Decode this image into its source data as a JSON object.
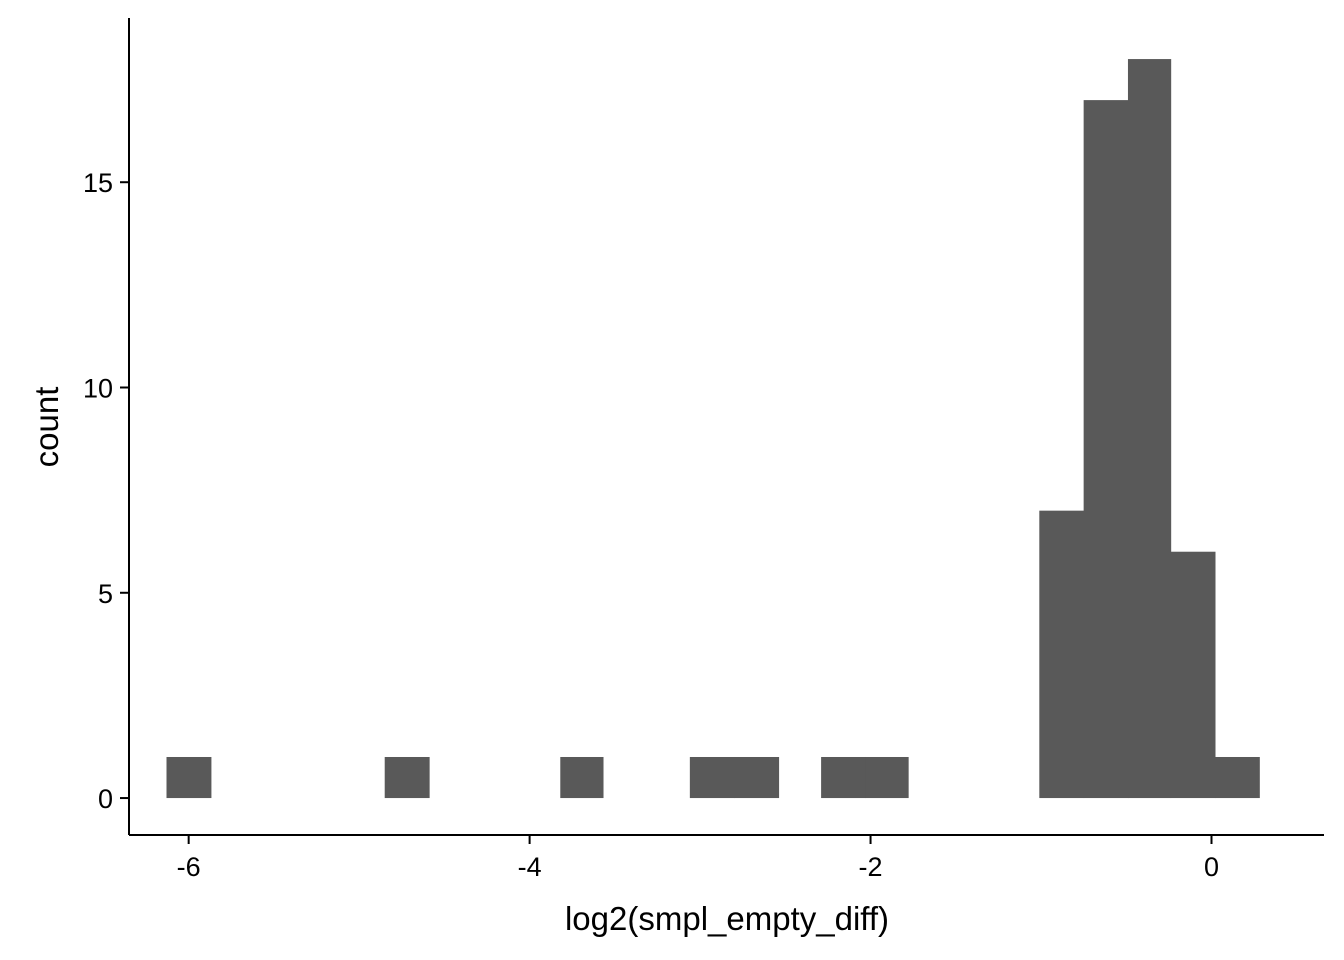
{
  "chart_data": {
    "type": "bar",
    "subtype": "histogram",
    "xlabel": "log2(smpl_empty_diff)",
    "ylabel": "count",
    "xlim": [
      -6.35,
      0.66
    ],
    "ylim": [
      -0.9,
      19.0
    ],
    "xticks": [
      -6,
      -4,
      -2,
      0
    ],
    "xtick_labels": [
      "-6",
      "-4",
      "-2",
      "0"
    ],
    "yticks": [
      0,
      5,
      10,
      15
    ],
    "ytick_labels": [
      "0",
      "5",
      "10",
      "15"
    ],
    "bin_width": 0.256,
    "bins": [
      {
        "x_min": -6.13,
        "x_max": -5.87,
        "count": 1
      },
      {
        "x_min": -4.85,
        "x_max": -4.59,
        "count": 1
      },
      {
        "x_min": -3.82,
        "x_max": -3.57,
        "count": 1
      },
      {
        "x_min": -3.06,
        "x_max": -2.8,
        "count": 1
      },
      {
        "x_min": -2.8,
        "x_max": -2.54,
        "count": 1
      },
      {
        "x_min": -2.29,
        "x_max": -2.03,
        "count": 1
      },
      {
        "x_min": -2.03,
        "x_max": -1.78,
        "count": 1
      },
      {
        "x_min": -1.01,
        "x_max": -0.75,
        "count": 7
      },
      {
        "x_min": -0.75,
        "x_max": -0.49,
        "count": 17
      },
      {
        "x_min": -0.49,
        "x_max": -0.24,
        "count": 18
      },
      {
        "x_min": -0.24,
        "x_max": 0.02,
        "count": 6
      },
      {
        "x_min": 0.02,
        "x_max": 0.28,
        "count": 1
      }
    ],
    "bar_color": "#595959",
    "grid": false,
    "legend": "none"
  }
}
